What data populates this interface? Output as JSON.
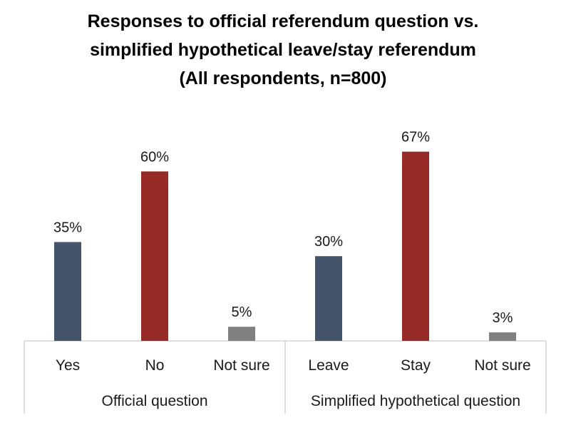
{
  "chart_data": {
    "type": "bar",
    "title": [
      "Responses to official referendum question vs.",
      "simplified hypothetical leave/stay referendum",
      "(All respondents, n=800)"
    ],
    "ylim": [
      0,
      70
    ],
    "grid": false,
    "legend": "none",
    "colors": {
      "yes_leave": "#44546a",
      "no_stay": "#962a26",
      "not_sure": "#808080"
    },
    "groups": [
      {
        "label": "Official question",
        "categories": [
          "Yes",
          "No",
          "Not sure"
        ],
        "values": [
          35,
          60,
          5
        ],
        "value_labels": [
          "35%",
          "60%",
          "5%"
        ]
      },
      {
        "label": "Simplified hypothetical question",
        "categories": [
          "Leave",
          "Stay",
          "Not sure"
        ],
        "values": [
          30,
          67,
          3
        ],
        "value_labels": [
          "30%",
          "67%",
          "3%"
        ]
      }
    ]
  }
}
